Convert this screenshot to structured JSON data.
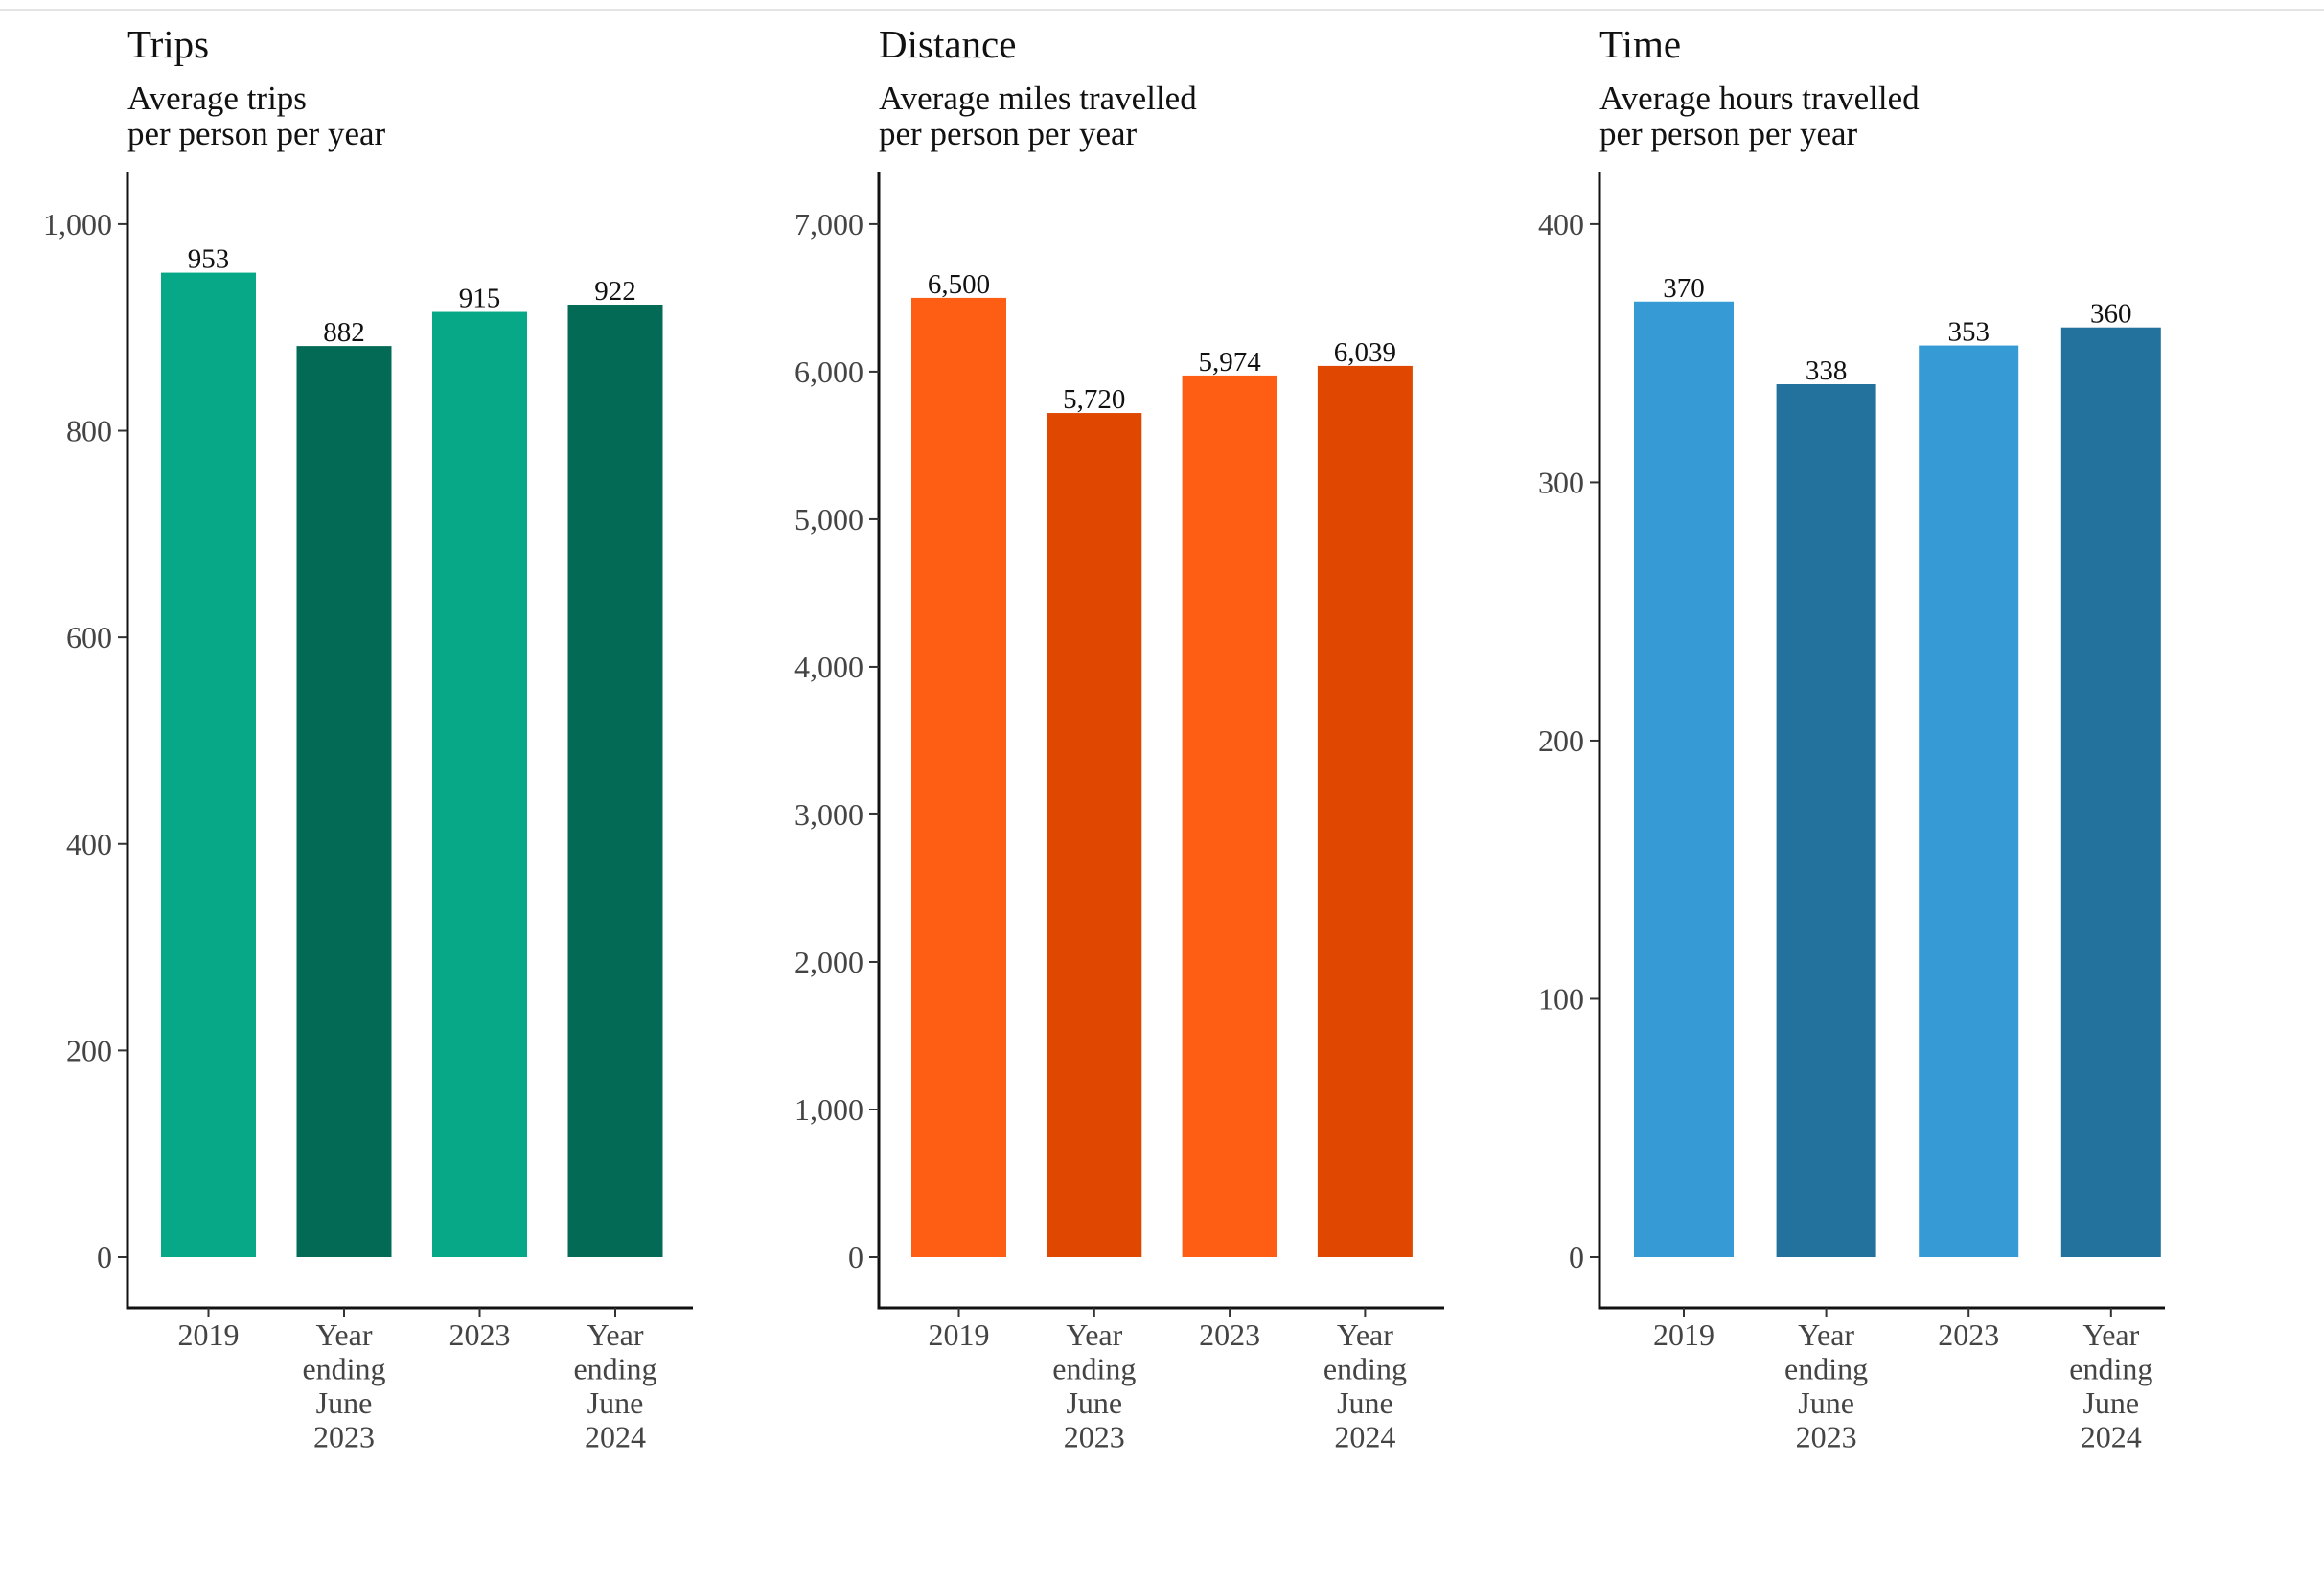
{
  "chart_data": [
    {
      "type": "bar",
      "title": "Trips",
      "subtitle_lines": [
        "Average trips",
        "per person per year"
      ],
      "categories": [
        [
          "2019"
        ],
        [
          "Year",
          "ending",
          "June",
          "2023"
        ],
        [
          "2023"
        ],
        [
          "Year",
          "ending",
          "June",
          "2024"
        ]
      ],
      "values": [
        953,
        882,
        915,
        922
      ],
      "value_labels": [
        "953",
        "882",
        "915",
        "922"
      ],
      "ylim": [
        0,
        1050
      ],
      "yticks": [
        0,
        200,
        400,
        600,
        800,
        1000
      ],
      "ytick_labels": [
        "0",
        "200",
        "400",
        "600",
        "800",
        "1,000"
      ],
      "colors": [
        "#07a887",
        "#036b55",
        "#07a887",
        "#036b55"
      ],
      "xlabel": "",
      "ylabel": "",
      "grid": false
    },
    {
      "type": "bar",
      "title": "Distance",
      "subtitle_lines": [
        "Average miles travelled",
        "per person per year"
      ],
      "categories": [
        [
          "2019"
        ],
        [
          "Year",
          "ending",
          "June",
          "2023"
        ],
        [
          "2023"
        ],
        [
          "Year",
          "ending",
          "June",
          "2024"
        ]
      ],
      "values": [
        6500,
        5720,
        5974,
        6039
      ],
      "value_labels": [
        "6,500",
        "5,720",
        "5,974",
        "6,039"
      ],
      "ylim": [
        0,
        7350
      ],
      "yticks": [
        0,
        1000,
        2000,
        3000,
        4000,
        5000,
        6000,
        7000
      ],
      "ytick_labels": [
        "0",
        "1,000",
        "2,000",
        "3,000",
        "4,000",
        "5,000",
        "6,000",
        "7,000"
      ],
      "colors": [
        "#fe5e13",
        "#e04801",
        "#fe5e13",
        "#e04801"
      ],
      "xlabel": "",
      "ylabel": "",
      "grid": false
    },
    {
      "type": "bar",
      "title": "Time",
      "subtitle_lines": [
        "Average hours travelled",
        "per person per year"
      ],
      "categories": [
        [
          "2019"
        ],
        [
          "Year",
          "ending",
          "June",
          "2023"
        ],
        [
          "2023"
        ],
        [
          "Year",
          "ending",
          "June",
          "2024"
        ]
      ],
      "values": [
        370,
        338,
        353,
        360
      ],
      "value_labels": [
        "370",
        "338",
        "353",
        "360"
      ],
      "ylim": [
        0,
        420
      ],
      "yticks": [
        0,
        100,
        200,
        300,
        400
      ],
      "ytick_labels": [
        "0",
        "100",
        "200",
        "300",
        "400"
      ],
      "colors": [
        "#369bd4",
        "#23729d",
        "#369bd4",
        "#23729d"
      ],
      "xlabel": "",
      "ylabel": "",
      "grid": false
    }
  ]
}
